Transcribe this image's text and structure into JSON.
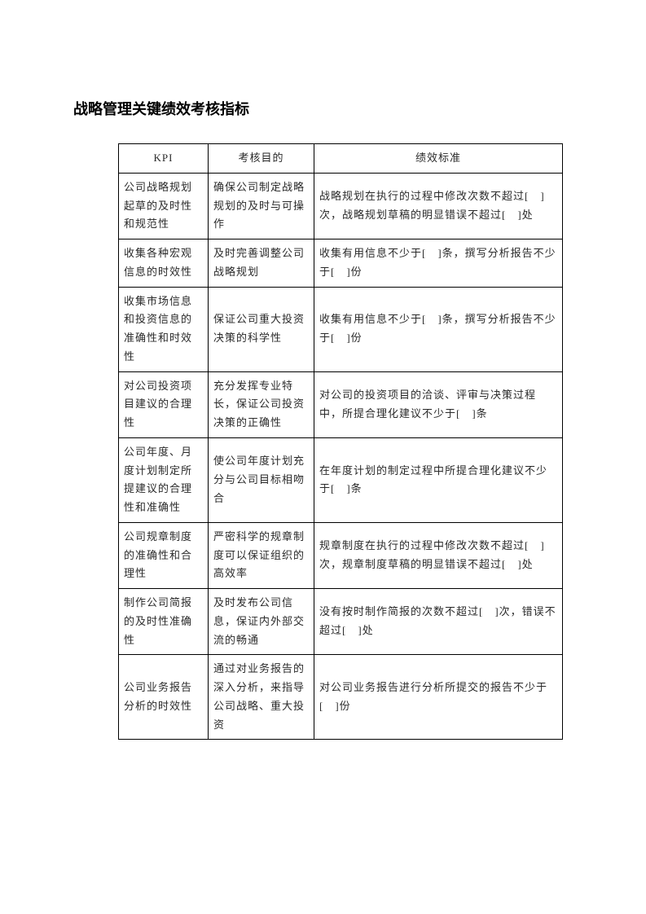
{
  "title": "战略管理关键绩效考核指标",
  "table": {
    "columns": [
      "KPI",
      "考核目的",
      "绩效标准"
    ],
    "rows": [
      {
        "kpi": "公司战略规划起草的及时性和规范性",
        "purpose": "确保公司制定战略规划的及时与可操作",
        "standard": "战略规划在执行的过程中修改次数不超过[　]次，战略规划草稿的明显错误不超过[　]处"
      },
      {
        "kpi": "收集各种宏观信息的时效性",
        "purpose": "及时完善调整公司战略规划",
        "standard": "收集有用信息不少于[　]条，撰写分析报告不少于[　]份"
      },
      {
        "kpi": "收集市场信息和投资信息的准确性和时效性",
        "purpose": "保证公司重大投资决策的科学性",
        "standard": "收集有用信息不少于[　]条，撰写分析报告不少于[　]份"
      },
      {
        "kpi": "对公司投资项目建议的合理性",
        "purpose": "充分发挥专业特长，保证公司投资决策的正确性",
        "standard": "对公司的投资项目的洽谈、评审与决策过程中，所提合理化建议不少于[　]条"
      },
      {
        "kpi": "公司年度、月度计划制定所提建议的合理性和准确性",
        "purpose": "使公司年度计划充分与公司目标相吻合",
        "standard": "在年度计划的制定过程中所提合理化建议不少于[　]条"
      },
      {
        "kpi": "公司规章制度的准确性和合理性",
        "purpose": "严密科学的规章制度可以保证组织的高效率",
        "standard": "规章制度在执行的过程中修改次数不超过[　]次，规章制度草稿的明显错误不超过[　]处"
      },
      {
        "kpi": "制作公司简报的及时性准确性",
        "purpose": "及时发布公司信息，保证内外部交流的畅通",
        "standard": "没有按时制作简报的次数不超过[　]次，错误不超过[　]处"
      },
      {
        "kpi": "公司业务报告分析的时效性",
        "purpose": "通过对业务报告的深入分析，来指导公司战略、重大投资",
        "standard": "对公司业务报告进行分析所提交的报告不少于[　]份"
      }
    ]
  }
}
